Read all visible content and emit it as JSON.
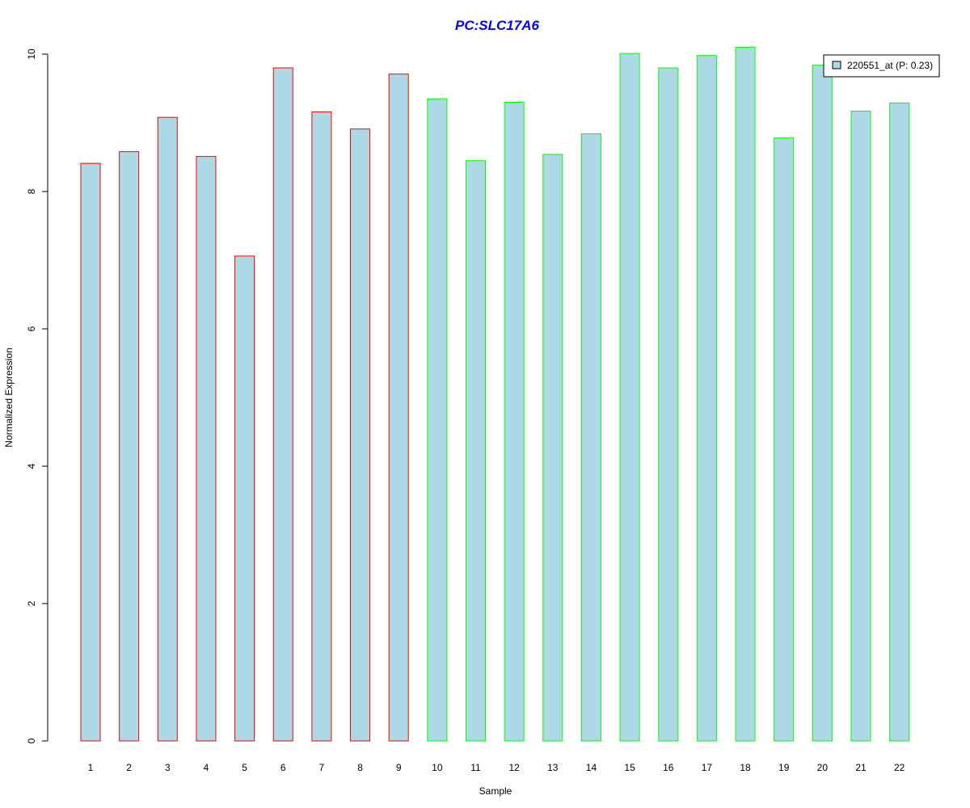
{
  "chart_data": {
    "type": "bar",
    "title": "PC:SLC17A6",
    "xlabel": "Sample",
    "ylabel": "Normalized Expression",
    "ylim": [
      0,
      10
    ],
    "yticks": [
      0,
      2,
      4,
      6,
      8,
      10
    ],
    "grid": false,
    "legend_position": "top-right",
    "legend": [
      {
        "label": "220551_at (P: 0.23)",
        "fill": "#add8e6"
      }
    ],
    "categories": [
      "1",
      "2",
      "3",
      "4",
      "5",
      "6",
      "7",
      "8",
      "9",
      "10",
      "11",
      "12",
      "13",
      "14",
      "15",
      "16",
      "17",
      "18",
      "19",
      "20",
      "21",
      "22"
    ],
    "values": [
      8.41,
      8.58,
      9.08,
      8.51,
      7.06,
      9.8,
      9.16,
      8.91,
      9.71,
      9.35,
      8.45,
      9.3,
      8.54,
      8.84,
      10.01,
      9.8,
      9.98,
      10.1,
      8.78,
      9.84,
      9.17,
      9.29
    ],
    "groups": [
      {
        "from": 1,
        "to": 9,
        "border": "#ff0000"
      },
      {
        "from": 10,
        "to": 22,
        "border": "#00ff00"
      }
    ],
    "bar_fill": "#add8e6",
    "title_color": "#0000ff"
  }
}
